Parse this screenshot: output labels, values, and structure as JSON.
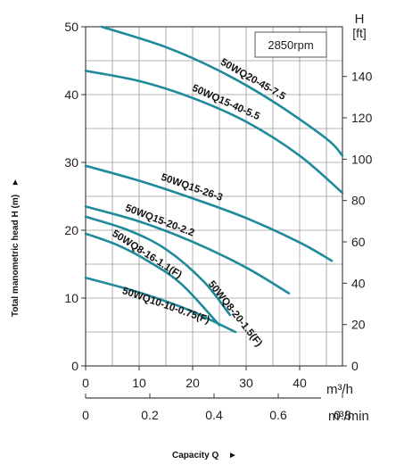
{
  "chart_data": {
    "type": "line",
    "title": "",
    "speed_label": "2850rpm",
    "ylabel": "Total manometric head H (m)",
    "ylabel_arrow": "►",
    "xlabel": "Capacity Q",
    "xlabel_arrow": "►",
    "x_unit_top": "m³/h",
    "x_unit_bottom": "m³/min",
    "y_unit_right_top": "H",
    "y_unit_right_bottom": "[ft]",
    "xlim": [
      0,
      48
    ],
    "ylim": [
      0,
      50
    ],
    "x_ticks_m3h": [
      "0",
      "10",
      "20",
      "30",
      "40"
    ],
    "x_ticks_m3min": [
      "0",
      "0.2",
      "0.4",
      "0.6",
      "0.8"
    ],
    "y_ticks_m": [
      "0",
      "10",
      "20",
      "30",
      "40",
      "50"
    ],
    "y_ticks_ft": [
      "0",
      "20",
      "40",
      "60",
      "80",
      "100",
      "120",
      "140"
    ],
    "grid": true,
    "line_color": "#1f8a9c",
    "series": [
      {
        "name": "50WQ20-45-7.5",
        "x": [
          3,
          15,
          25,
          35,
          45,
          48
        ],
        "y": [
          50,
          47,
          43.5,
          39,
          33.5,
          31
        ]
      },
      {
        "name": "50WQ15-40-5.5",
        "x": [
          0,
          10,
          20,
          30,
          40,
          48
        ],
        "y": [
          43.5,
          42,
          39.5,
          36,
          31,
          25.5
        ]
      },
      {
        "name": "50WQ15-26-3",
        "x": [
          0,
          10,
          20,
          30,
          40,
          46
        ],
        "y": [
          29.5,
          27.3,
          24.7,
          21.8,
          18.2,
          15.5
        ]
      },
      {
        "name": "50WQ15-20-2.2",
        "x": [
          0,
          10,
          20,
          30,
          38
        ],
        "y": [
          23.5,
          21.3,
          18.3,
          14.5,
          10.7
        ]
      },
      {
        "name": "50WQ8-20-1.5(F)",
        "x": [
          0,
          8,
          15,
          22,
          27
        ],
        "y": [
          22,
          20,
          17.2,
          12.5,
          7.5
        ]
      },
      {
        "name": "50WQ8-16-1.1(F)",
        "x": [
          0,
          6,
          12,
          18,
          25
        ],
        "y": [
          19.5,
          17.8,
          15.3,
          12,
          6
        ]
      },
      {
        "name": "50WQ10-10-0.75(F)",
        "x": [
          0,
          8,
          14,
          20,
          28
        ],
        "y": [
          13,
          11.3,
          9.8,
          8,
          5
        ]
      }
    ]
  }
}
